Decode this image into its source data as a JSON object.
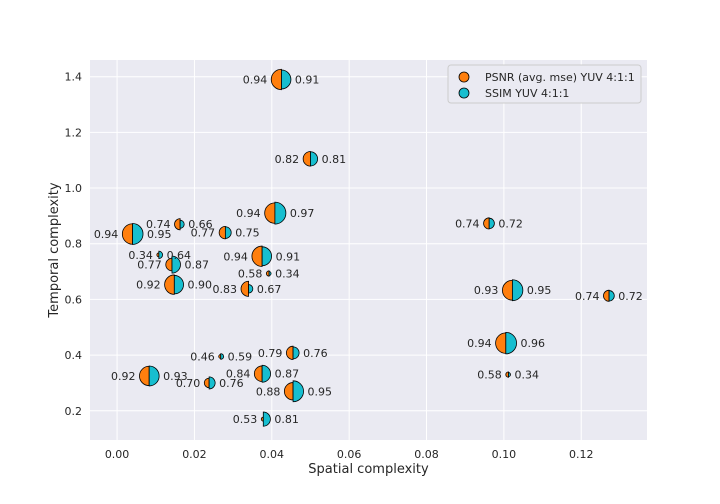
{
  "chart_data": {
    "type": "scatter",
    "xlabel": "Spatial complexity",
    "ylabel": "Temporal complexity",
    "xlim": [
      -0.007,
      0.137
    ],
    "ylim": [
      0.095,
      1.46
    ],
    "x_ticks": [
      "0.00",
      "0.02",
      "0.04",
      "0.06",
      "0.08",
      "0.10",
      "0.12"
    ],
    "x_tick_values": [
      0.0,
      0.02,
      0.04,
      0.06,
      0.08,
      0.1,
      0.12
    ],
    "y_ticks": [
      "0.2",
      "0.4",
      "0.6",
      "0.8",
      "1.0",
      "1.2",
      "1.4"
    ],
    "y_tick_values": [
      0.2,
      0.4,
      0.6,
      0.8,
      1.0,
      1.2,
      1.4
    ],
    "grid": true,
    "legend_position": "top-right",
    "series": [
      {
        "name": "PSNR (avg. mse) YUV 4:1:1",
        "color": "#ff7f0e",
        "side": "left"
      },
      {
        "name": "SSIM YUV 4:1:1",
        "color": "#17becf",
        "side": "right"
      }
    ],
    "points": [
      {
        "x": 0.0425,
        "y": 1.39,
        "psnr": 0.94,
        "ssim": 0.91,
        "psnr_label": "0.94",
        "ssim_label": "0.91"
      },
      {
        "x": 0.05,
        "y": 1.105,
        "psnr": 0.82,
        "ssim": 0.81,
        "psnr_label": "0.82",
        "ssim_label": "0.81"
      },
      {
        "x": 0.004,
        "y": 0.835,
        "psnr": 0.94,
        "ssim": 0.95,
        "psnr_label": "0.94",
        "ssim_label": "0.95"
      },
      {
        "x": 0.0163,
        "y": 0.87,
        "psnr": 0.74,
        "ssim": 0.66,
        "psnr_label": "0.74",
        "ssim_label": "0.66"
      },
      {
        "x": 0.0408,
        "y": 0.91,
        "psnr": 0.94,
        "ssim": 0.97,
        "psnr_label": "0.94",
        "ssim_label": "0.97"
      },
      {
        "x": 0.028,
        "y": 0.84,
        "psnr": 0.77,
        "ssim": 0.75,
        "psnr_label": "0.77",
        "ssim_label": "0.75"
      },
      {
        "x": 0.0962,
        "y": 0.873,
        "psnr": 0.74,
        "ssim": 0.72,
        "psnr_label": "0.74",
        "ssim_label": "0.72"
      },
      {
        "x": 0.0108,
        "y": 0.76,
        "psnr": 0.34,
        "ssim": 0.64,
        "psnr_label": "0.34",
        "ssim_label": "0.64"
      },
      {
        "x": 0.0375,
        "y": 0.755,
        "psnr": 0.94,
        "ssim": 0.91,
        "psnr_label": "0.94",
        "ssim_label": "0.91"
      },
      {
        "x": 0.0142,
        "y": 0.725,
        "psnr": 0.77,
        "ssim": 0.87,
        "psnr_label": "0.77",
        "ssim_label": "0.87"
      },
      {
        "x": 0.0393,
        "y": 0.693,
        "psnr": 0.58,
        "ssim": 0.34,
        "psnr_label": "0.58",
        "ssim_label": "0.34"
      },
      {
        "x": 0.0148,
        "y": 0.653,
        "psnr": 0.92,
        "ssim": 0.9,
        "psnr_label": "0.92",
        "ssim_label": "0.90"
      },
      {
        "x": 0.034,
        "y": 0.638,
        "psnr": 0.83,
        "ssim": 0.67,
        "psnr_label": "0.83",
        "ssim_label": "0.67"
      },
      {
        "x": 0.1022,
        "y": 0.633,
        "psnr": 0.93,
        "ssim": 0.95,
        "psnr_label": "0.93",
        "ssim_label": "0.95"
      },
      {
        "x": 0.1272,
        "y": 0.613,
        "psnr": 0.74,
        "ssim": 0.72,
        "psnr_label": "0.74",
        "ssim_label": "0.72"
      },
      {
        "x": 0.1005,
        "y": 0.443,
        "psnr": 0.94,
        "ssim": 0.96,
        "psnr_label": "0.94",
        "ssim_label": "0.96"
      },
      {
        "x": 0.0268,
        "y": 0.395,
        "psnr": 0.46,
        "ssim": 0.59,
        "psnr_label": "0.46",
        "ssim_label": "0.59"
      },
      {
        "x": 0.0455,
        "y": 0.408,
        "psnr": 0.79,
        "ssim": 0.76,
        "psnr_label": "0.79",
        "ssim_label": "0.76"
      },
      {
        "x": 0.0083,
        "y": 0.325,
        "psnr": 0.92,
        "ssim": 0.93,
        "psnr_label": "0.92",
        "ssim_label": "0.93"
      },
      {
        "x": 0.0375,
        "y": 0.333,
        "psnr": 0.84,
        "ssim": 0.87,
        "psnr_label": "0.84",
        "ssim_label": "0.87"
      },
      {
        "x": 0.1012,
        "y": 0.33,
        "psnr": 0.58,
        "ssim": 0.34,
        "psnr_label": "0.58",
        "ssim_label": "0.34"
      },
      {
        "x": 0.0238,
        "y": 0.3,
        "psnr": 0.7,
        "ssim": 0.76,
        "psnr_label": "0.70",
        "ssim_label": "0.76"
      },
      {
        "x": 0.0455,
        "y": 0.27,
        "psnr": 0.88,
        "ssim": 0.95,
        "psnr_label": "0.88",
        "ssim_label": "0.95"
      },
      {
        "x": 0.0378,
        "y": 0.17,
        "psnr": 0.53,
        "ssim": 0.81,
        "psnr_label": "0.53",
        "ssim_label": "0.81"
      }
    ]
  }
}
